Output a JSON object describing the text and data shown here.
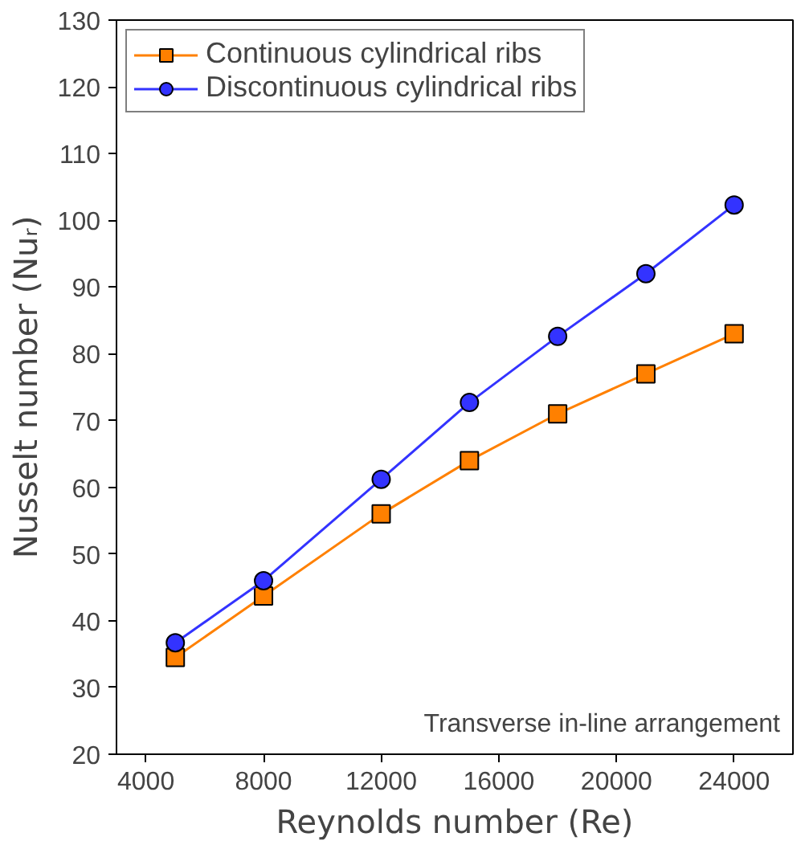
{
  "chart_data": {
    "type": "line",
    "xlabel": "Reynolds number (Re)",
    "ylabel": "Nusselt number (Nuᵣ)",
    "x": [
      5000,
      8000,
      12000,
      15000,
      18000,
      21000,
      24000
    ],
    "series": [
      {
        "name": "Continuous cylindrical ribs",
        "color": "#ff8000",
        "marker": "square",
        "values": [
          34.5,
          43.7,
          56,
          64,
          71,
          77,
          83
        ]
      },
      {
        "name": "Discontinuous cylindrical ribs",
        "color": "#3333ff",
        "marker": "circle",
        "values": [
          36.7,
          46,
          61.2,
          72.7,
          82.6,
          92,
          102.3
        ]
      }
    ],
    "xlim": [
      3000,
      26000
    ],
    "xticks": [
      4000,
      8000,
      12000,
      16000,
      20000,
      24000
    ],
    "ylim": [
      20,
      130
    ],
    "yticks": [
      20,
      30,
      40,
      50,
      60,
      70,
      80,
      90,
      100,
      110,
      120,
      130
    ],
    "grid": false,
    "legend": "top left",
    "line_style": "solid",
    "annotations": [
      "Transverse in-line arrangement"
    ]
  }
}
